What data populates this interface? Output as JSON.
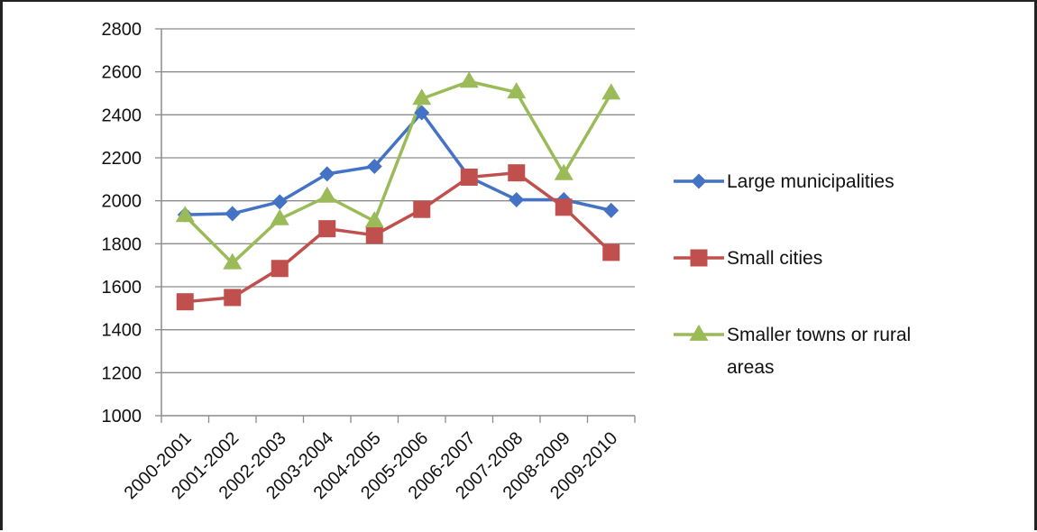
{
  "chart_data": {
    "type": "line",
    "categories": [
      "2000-2001",
      "2001-2002",
      "2002-2003",
      "2003-2004",
      "2004-2005",
      "2005-2006",
      "2006-2007",
      "2007-2008",
      "2008-2009",
      "2009-2010"
    ],
    "ylim": [
      1000,
      2800
    ],
    "yticks": [
      1000,
      1200,
      1400,
      1600,
      1800,
      2000,
      2200,
      2400,
      2600,
      2800
    ],
    "ytick_labels": [
      "1000",
      "1200",
      "1400",
      "1600",
      "1800",
      "2000",
      "2200",
      "2400",
      "2600",
      "2800"
    ],
    "grid": true,
    "legend_position": "right",
    "series": [
      {
        "name": "Large municipalities",
        "color": "#4472C4",
        "marker": "diamond",
        "values": [
          1935,
          1940,
          1995,
          2125,
          2160,
          2410,
          2110,
          2005,
          2005,
          1955
        ]
      },
      {
        "name": "Small cities",
        "color": "#C0504D",
        "marker": "square",
        "values": [
          1530,
          1550,
          1685,
          1870,
          1840,
          1960,
          2110,
          2130,
          1970,
          1760
        ]
      },
      {
        "name": "Smaller towns or rural areas",
        "color": "#9BBB59",
        "marker": "triangle",
        "values": [
          1930,
          1710,
          1915,
          2020,
          1905,
          2475,
          2555,
          2505,
          2125,
          2500
        ]
      }
    ]
  },
  "legend": {
    "items": [
      {
        "label_lines": [
          "Large municipalities"
        ]
      },
      {
        "label_lines": [
          "Small cities"
        ]
      },
      {
        "label_lines": [
          "Smaller towns or rural",
          "areas"
        ]
      }
    ]
  }
}
